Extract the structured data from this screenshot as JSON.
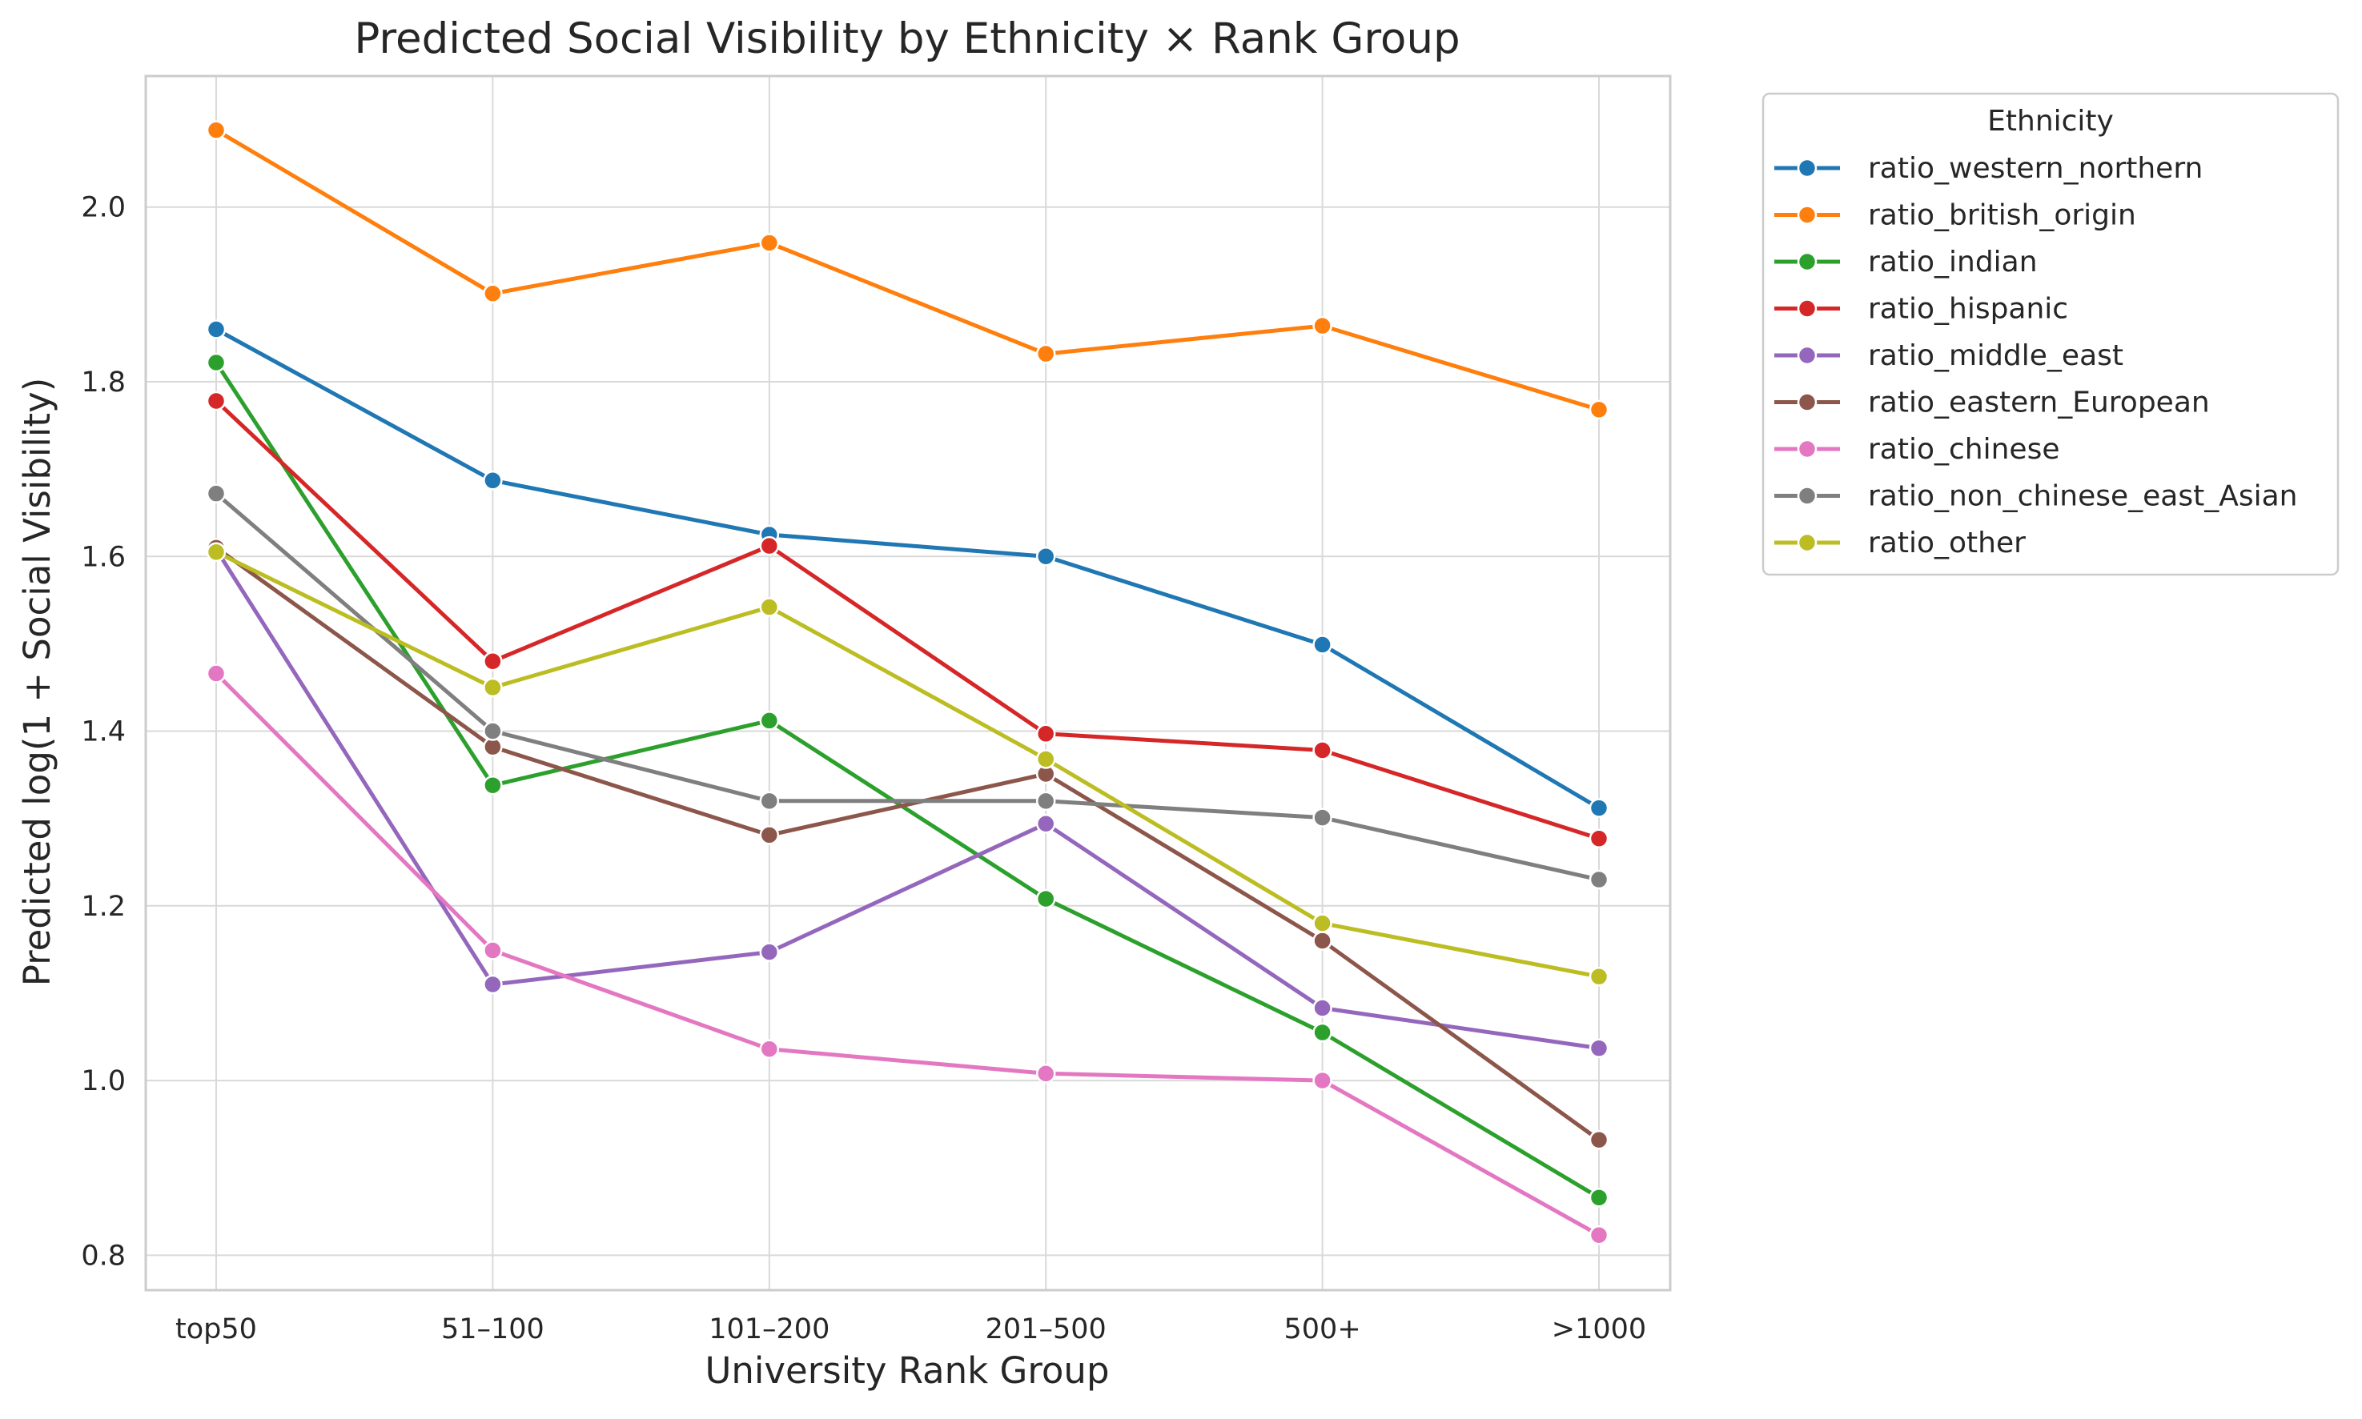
{
  "chart_data": {
    "type": "line",
    "title": "Predicted Social Visibility by Ethnicity × Rank Group",
    "xlabel": "University Rank Group",
    "ylabel": "Predicted log(1 + Social Visibility)",
    "categories": [
      "top50",
      "51–100",
      "101–200",
      "201–500",
      "500+",
      ">1000"
    ],
    "ylim": [
      0.76,
      2.15
    ],
    "yticks": [
      0.8,
      1.0,
      1.2,
      1.4,
      1.6,
      1.8,
      2.0
    ],
    "ytick_labels": [
      "0.8",
      "1.0",
      "1.2",
      "1.4",
      "1.6",
      "1.8",
      "2.0"
    ],
    "grid": true,
    "legend_title": "Ethnicity",
    "legend_position": "outside right, top",
    "series": [
      {
        "name": "ratio_western_northern",
        "color": "#1f77b4",
        "values": [
          1.86,
          1.687,
          1.625,
          1.6,
          1.499,
          1.312
        ]
      },
      {
        "name": "ratio_british_origin",
        "color": "#ff7f0e",
        "values": [
          2.088,
          1.901,
          1.959,
          1.832,
          1.864,
          1.768
        ]
      },
      {
        "name": "ratio_indian",
        "color": "#2ca02c",
        "values": [
          1.822,
          1.338,
          1.412,
          1.208,
          1.055,
          0.866
        ]
      },
      {
        "name": "ratio_hispanic",
        "color": "#d62728",
        "values": [
          1.778,
          1.48,
          1.612,
          1.397,
          1.378,
          1.277
        ]
      },
      {
        "name": "ratio_middle_east",
        "color": "#9467bd",
        "values": [
          1.608,
          1.11,
          1.147,
          1.294,
          1.083,
          1.037
        ]
      },
      {
        "name": "ratio_eastern_European",
        "color": "#8c564b",
        "values": [
          1.61,
          1.382,
          1.281,
          1.351,
          1.16,
          0.932
        ]
      },
      {
        "name": "ratio_chinese",
        "color": "#e377c2",
        "values": [
          1.466,
          1.149,
          1.036,
          1.008,
          1.0,
          0.823
        ]
      },
      {
        "name": "ratio_non_chinese_east_Asian",
        "color": "#7f7f7f",
        "values": [
          1.672,
          1.4,
          1.32,
          1.32,
          1.301,
          1.23
        ]
      },
      {
        "name": "ratio_other",
        "color": "#bcbd22",
        "values": [
          1.605,
          1.45,
          1.542,
          1.368,
          1.18,
          1.119
        ]
      }
    ]
  }
}
